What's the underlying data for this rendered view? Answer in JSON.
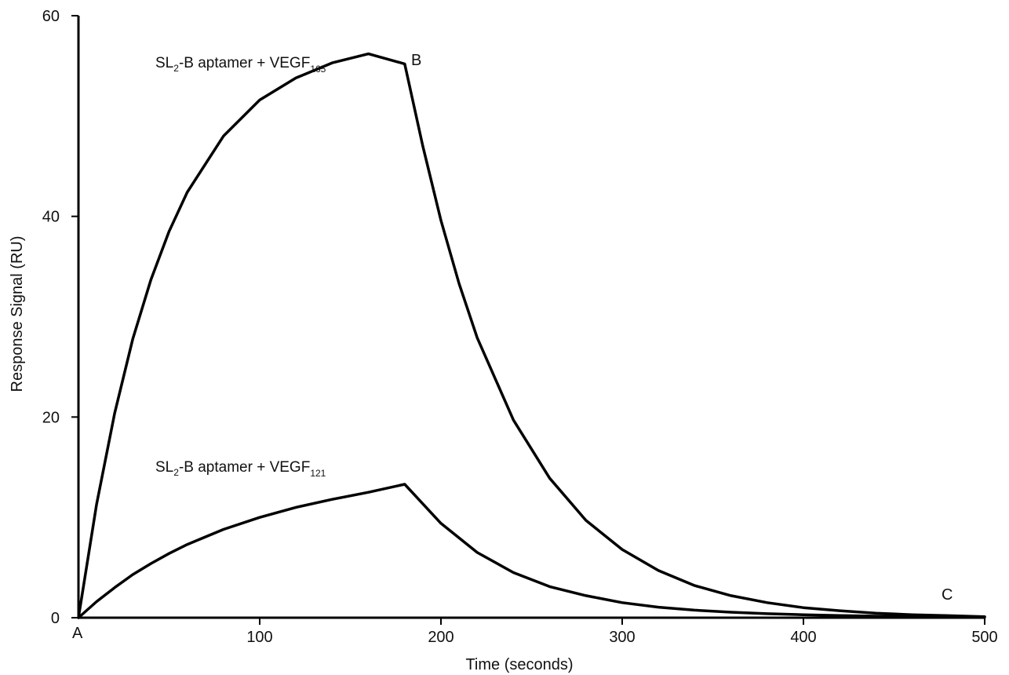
{
  "chart_data": {
    "type": "line",
    "xlabel": "Time (seconds)",
    "ylabel": "Response Signal (RU)",
    "xlim": [
      0,
      500
    ],
    "ylim": [
      0,
      60
    ],
    "xticks": [
      100,
      200,
      300,
      400,
      500
    ],
    "yticks": [
      0,
      20,
      40,
      60
    ],
    "grid": false,
    "series": [
      {
        "name": "SL2-B aptamer + VEGF165",
        "label_main": "SL",
        "label_sub1": "2",
        "label_mid": "-B aptamer + VEGF",
        "label_sub2": "165",
        "x": [
          0,
          10,
          20,
          30,
          40,
          50,
          60,
          80,
          100,
          120,
          140,
          160,
          180,
          190,
          200,
          210,
          220,
          240,
          260,
          280,
          300,
          320,
          340,
          360,
          380,
          400,
          420,
          440,
          460,
          480,
          500
        ],
        "y": [
          0,
          11.3,
          20.4,
          27.8,
          33.7,
          38.5,
          42.4,
          48.0,
          51.6,
          53.8,
          55.3,
          56.2,
          55.2,
          47.0,
          39.6,
          33.3,
          27.9,
          19.7,
          13.9,
          9.7,
          6.8,
          4.7,
          3.2,
          2.2,
          1.5,
          1.0,
          0.7,
          0.45,
          0.3,
          0.2,
          0.1
        ]
      },
      {
        "name": "SL2-B aptamer + VEGF121",
        "label_main": "SL",
        "label_sub1": "2",
        "label_mid": "-B aptamer + VEGF",
        "label_sub2": "121",
        "x": [
          0,
          10,
          20,
          30,
          40,
          50,
          60,
          80,
          100,
          120,
          140,
          160,
          180,
          200,
          220,
          240,
          260,
          280,
          300,
          320,
          340,
          360,
          380,
          400,
          420,
          440,
          460,
          480,
          500
        ],
        "y": [
          0,
          1.6,
          3.0,
          4.3,
          5.4,
          6.4,
          7.3,
          8.8,
          10.0,
          11.0,
          11.8,
          12.5,
          13.3,
          9.4,
          6.5,
          4.5,
          3.1,
          2.2,
          1.5,
          1.05,
          0.75,
          0.55,
          0.4,
          0.3,
          0.22,
          0.16,
          0.12,
          0.09,
          0.05
        ]
      }
    ],
    "annotations": {
      "A": "A",
      "B": "B",
      "C": "C"
    }
  }
}
